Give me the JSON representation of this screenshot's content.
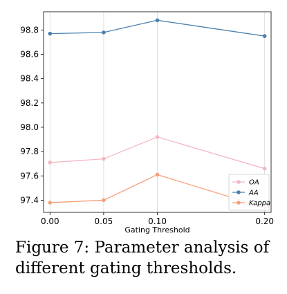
{
  "chart_data": {
    "type": "line",
    "x": [
      0.0,
      0.05,
      0.1,
      0.2
    ],
    "x_tick_labels": [
      "0.00",
      "0.05",
      "0.10",
      "0.20"
    ],
    "xlabel": "Gating Threshold",
    "ylabel": "",
    "ylim": [
      97.3,
      98.95
    ],
    "xlim": [
      -0.006,
      0.206
    ],
    "y_ticks": [
      97.4,
      97.6,
      97.8,
      98.0,
      98.2,
      98.4,
      98.6,
      98.8
    ],
    "y_tick_labels": [
      "97.4",
      "97.6",
      "97.8",
      "98.0",
      "98.2",
      "98.4",
      "98.6",
      "98.8"
    ],
    "grid": "vertical",
    "legend_position": "lower-right",
    "series": [
      {
        "name": "OA",
        "values": [
          97.71,
          97.74,
          97.92,
          97.66
        ],
        "color": "#f4b6c2"
      },
      {
        "name": "AA",
        "values": [
          98.77,
          98.78,
          98.88,
          98.75
        ],
        "color": "#4a7fae"
      },
      {
        "name": "Kappa",
        "values": [
          97.38,
          97.4,
          97.61,
          97.34
        ],
        "color": "#f4a07a"
      }
    ]
  },
  "caption": "Figure 7: Parameter analysis of different gating thresholds."
}
